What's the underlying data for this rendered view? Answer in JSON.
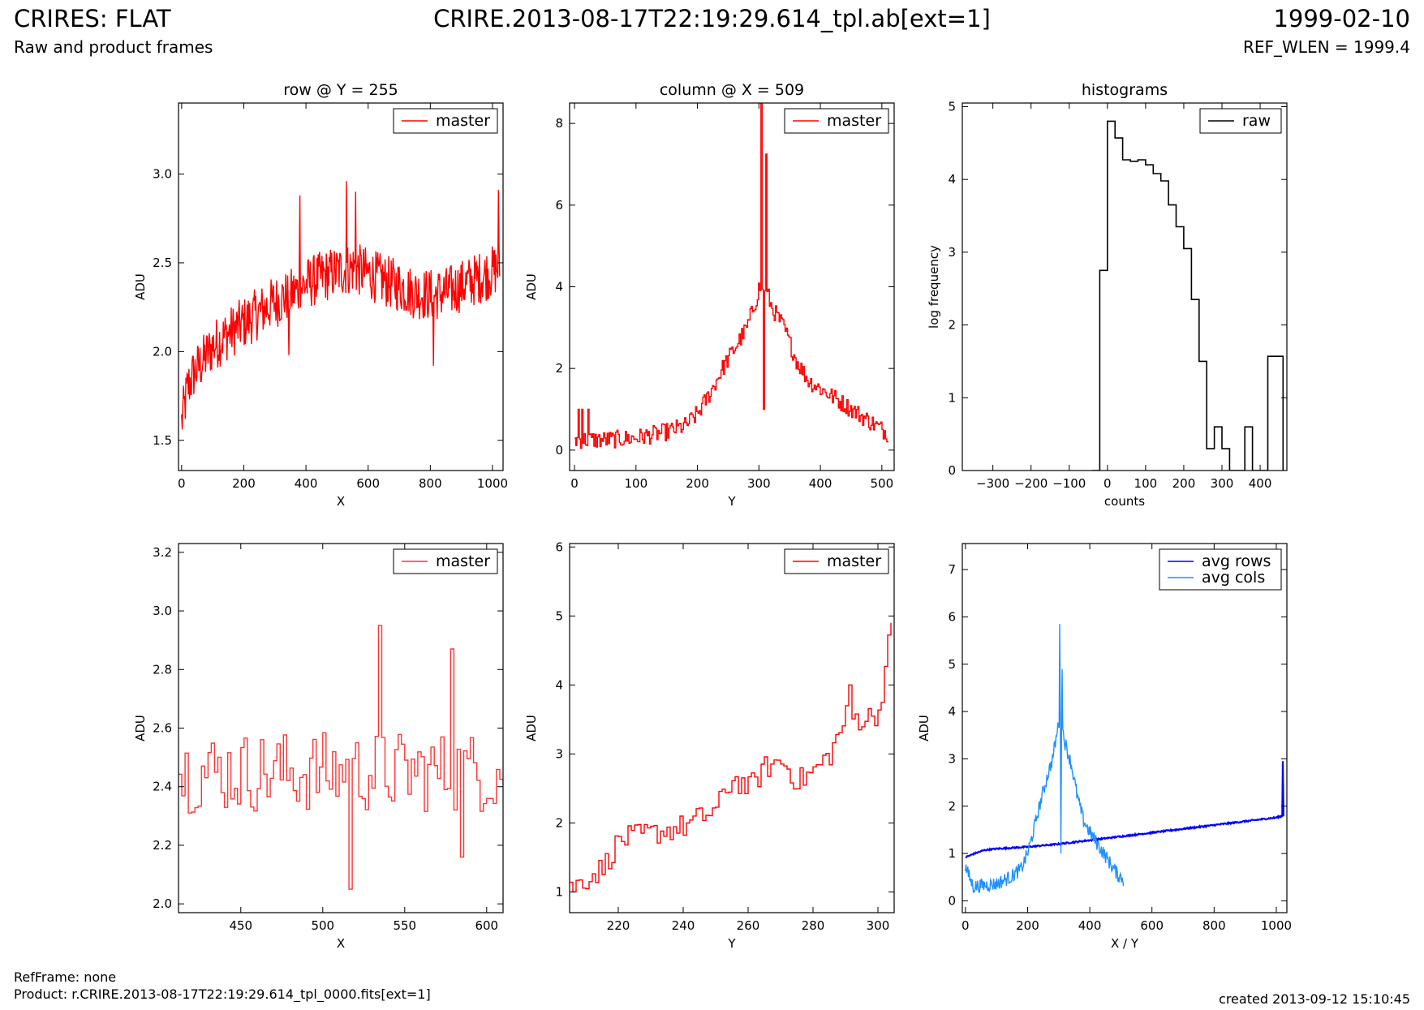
{
  "header": {
    "left_title": "CRIRES: FLAT",
    "left_subtitle": "Raw and product frames",
    "center_title": "CRIRE.2013-08-17T22:19:29.614_tpl.ab[ext=1]",
    "right_title": "1999-02-10",
    "right_subtitle": "REF_WLEN = 1999.4"
  },
  "footer": {
    "refframe": "RefFrame: none",
    "product": "Product: r.CRIRE.2013-08-17T22:19:29.614_tpl_0000.fits[ext=1]",
    "created": "created 2013-09-12 15:10:45"
  },
  "colors": {
    "master": "#ff0000",
    "raw": "#000000",
    "avg_rows": "#0000ff",
    "avg_cols": "#1e90ff"
  },
  "chart_data": [
    {
      "type": "line",
      "title": "row @ Y = 255",
      "xlabel": "X",
      "ylabel": "ADU",
      "xlim": [
        -10,
        1034
      ],
      "ylim": [
        1.33,
        3.4
      ],
      "xticks": [
        0,
        200,
        400,
        600,
        800,
        1000
      ],
      "yticks": [
        1.5,
        2.0,
        2.5,
        3.0
      ],
      "ytick_labels": [
        "1.5",
        "2.0",
        "2.5",
        "3.0"
      ],
      "legend": "top-right",
      "series": [
        {
          "name": "master",
          "color": "#ff0000",
          "step": false,
          "x": [
            0,
            20,
            40,
            70,
            100,
            150,
            200,
            250,
            300,
            350,
            400,
            450,
            500,
            550,
            600,
            650,
            700,
            750,
            800,
            850,
            900,
            950,
            1000,
            1023
          ],
          "y": [
            1.6,
            1.8,
            1.88,
            1.95,
            2.03,
            2.1,
            2.16,
            2.22,
            2.28,
            2.32,
            2.38,
            2.42,
            2.45,
            2.47,
            2.44,
            2.4,
            2.37,
            2.33,
            2.32,
            2.33,
            2.37,
            2.41,
            2.45,
            2.48
          ],
          "noise": 0.15,
          "points": 520,
          "spikes": [
            [
              530,
              2.96
            ],
            [
              560,
              2.9
            ],
            [
              380,
              2.88
            ],
            [
              1020,
              2.91
            ],
            [
              345,
              1.98
            ],
            [
              810,
              1.92
            ]
          ]
        }
      ]
    },
    {
      "type": "line",
      "title": "column @ X = 509",
      "xlabel": "Y",
      "ylabel": "ADU",
      "xlim": [
        -8,
        520
      ],
      "ylim": [
        -0.5,
        8.5
      ],
      "xticks": [
        0,
        100,
        200,
        300,
        400,
        500
      ],
      "yticks": [
        0,
        2,
        4,
        6,
        8
      ],
      "ytick_labels": [
        "0",
        "2",
        "4",
        "6",
        "8"
      ],
      "legend": "top-right",
      "series": [
        {
          "name": "master",
          "color": "#ff0000",
          "step": true,
          "x": [
            0,
            25,
            50,
            100,
            150,
            180,
            200,
            220,
            240,
            260,
            280,
            295,
            300,
            310,
            320,
            340,
            360,
            380,
            400,
            430,
            460,
            490,
            510
          ],
          "y": [
            0.25,
            0.25,
            0.25,
            0.3,
            0.45,
            0.6,
            0.9,
            1.4,
            2.0,
            2.5,
            3.0,
            3.7,
            4.0,
            4.0,
            3.5,
            3.0,
            2.2,
            1.7,
            1.5,
            1.2,
            0.9,
            0.6,
            0.4
          ],
          "noise": 0.22,
          "points": 260,
          "spikes": [
            [
              5,
              1.0
            ],
            [
              12,
              1.0
            ],
            [
              22,
              1.0
            ],
            [
              304,
              8.5
            ],
            [
              312,
              7.25
            ],
            [
              308,
              1.0
            ]
          ]
        }
      ]
    },
    {
      "type": "histogram",
      "title": "histograms",
      "xlabel": "counts",
      "ylabel": "log frequency",
      "xlim": [
        -380,
        470
      ],
      "ylim": [
        0,
        5.05
      ],
      "xticks": [
        -300,
        -200,
        -100,
        0,
        100,
        200,
        300,
        400
      ],
      "xtick_labels": [
        "−300",
        "−200",
        "−100",
        "0",
        "100",
        "200",
        "300",
        "400"
      ],
      "yticks": [
        0,
        1,
        2,
        3,
        4,
        5
      ],
      "ytick_labels": [
        "0",
        "1",
        "2",
        "3",
        "4",
        "5"
      ],
      "legend": "top-right",
      "series": [
        {
          "name": "raw",
          "color": "#000000",
          "bin_edges": [
            -40,
            -20,
            0,
            20,
            40,
            60,
            80,
            100,
            120,
            140,
            160,
            180,
            200,
            220,
            240,
            260,
            280,
            300,
            320,
            340,
            360,
            380,
            400,
            420,
            440,
            460
          ],
          "log_counts": [
            0,
            2.75,
            4.8,
            4.57,
            4.27,
            4.25,
            4.27,
            4.2,
            4.08,
            3.98,
            3.65,
            3.35,
            3.05,
            2.35,
            1.5,
            0.3,
            0.6,
            0.3,
            0,
            0,
            0.6,
            0,
            0,
            1.57,
            1.57
          ]
        }
      ]
    },
    {
      "type": "line",
      "title": "",
      "xlabel": "X",
      "ylabel": "ADU",
      "xlim": [
        412,
        610
      ],
      "ylim": [
        1.97,
        3.23
      ],
      "xticks": [
        450,
        500,
        550,
        600
      ],
      "yticks": [
        2.0,
        2.2,
        2.4,
        2.6,
        2.8,
        3.0,
        3.2
      ],
      "ytick_labels": [
        "2.0",
        "2.2",
        "2.4",
        "2.6",
        "2.8",
        "3.0",
        "3.2"
      ],
      "legend": "top-right",
      "series": [
        {
          "name": "master",
          "color": "#ff3333",
          "step": true,
          "x": [
            412,
            450,
            500,
            550,
            610
          ],
          "y": [
            2.45,
            2.45,
            2.45,
            2.45,
            2.45
          ],
          "noise": 0.14,
          "points": 100,
          "spikes": [
            [
              533,
              2.95
            ],
            [
              515,
              2.05
            ],
            [
              578,
              2.87
            ],
            [
              583,
              2.16
            ]
          ]
        }
      ]
    },
    {
      "type": "line",
      "title": "",
      "xlabel": "Y",
      "ylabel": "ADU",
      "xlim": [
        205,
        305
      ],
      "ylim": [
        0.7,
        6.05
      ],
      "xticks": [
        220,
        240,
        260,
        280,
        300
      ],
      "yticks": [
        1,
        2,
        3,
        4,
        5,
        6
      ],
      "ytick_labels": [
        "1",
        "2",
        "3",
        "4",
        "5",
        "6"
      ],
      "legend": "top-right",
      "series": [
        {
          "name": "master",
          "color": "#ff0000",
          "step": true,
          "x": [
            205,
            215,
            220,
            230,
            240,
            250,
            255,
            260,
            265,
            270,
            275,
            280,
            285,
            290,
            295,
            300,
            304
          ],
          "y": [
            1.05,
            1.35,
            1.75,
            1.85,
            1.95,
            2.2,
            2.65,
            2.5,
            2.8,
            2.9,
            2.6,
            2.75,
            3.0,
            3.55,
            3.5,
            3.6,
            4.9
          ],
          "noise": 0.18,
          "points": 100,
          "spikes": [
            [
              291,
              4.0
            ],
            [
              304,
              4.9
            ]
          ]
        }
      ]
    },
    {
      "type": "line",
      "title": "",
      "xlabel": "X / Y",
      "ylabel": "ADU",
      "xlim": [
        -10,
        1034
      ],
      "ylim": [
        -0.25,
        7.55
      ],
      "xticks": [
        0,
        200,
        400,
        600,
        800,
        1000
      ],
      "yticks": [
        0,
        1,
        2,
        3,
        4,
        5,
        6,
        7
      ],
      "ytick_labels": [
        "0",
        "1",
        "2",
        "3",
        "4",
        "5",
        "6",
        "7"
      ],
      "legend": "top-right",
      "series": [
        {
          "name": "avg rows",
          "color": "#0000ff",
          "step": false,
          "x": [
            0,
            30,
            60,
            100,
            200,
            300,
            400,
            500,
            600,
            700,
            800,
            900,
            1000,
            1023
          ],
          "y": [
            0.92,
            1.0,
            1.07,
            1.1,
            1.14,
            1.2,
            1.28,
            1.36,
            1.44,
            1.52,
            1.6,
            1.68,
            1.76,
            1.8
          ],
          "noise": 0.015,
          "points": 520,
          "spikes": [
            [
              1022,
              2.95
            ]
          ]
        },
        {
          "name": "avg cols",
          "color": "#1e90ff",
          "step": false,
          "x": [
            0,
            25,
            50,
            100,
            150,
            180,
            200,
            220,
            240,
            260,
            280,
            295,
            300,
            310,
            320,
            340,
            360,
            380,
            400,
            430,
            460,
            490,
            510
          ],
          "y": [
            0.72,
            0.3,
            0.32,
            0.36,
            0.52,
            0.68,
            1.0,
            1.5,
            2.05,
            2.55,
            3.0,
            3.55,
            3.8,
            3.7,
            3.35,
            2.9,
            2.2,
            1.7,
            1.45,
            1.15,
            0.85,
            0.55,
            0.45
          ],
          "noise": 0.15,
          "points": 260,
          "spikes": [
            [
              304,
              5.85
            ],
            [
              312,
              4.9
            ],
            [
              308,
              1.0
            ]
          ]
        }
      ]
    }
  ]
}
